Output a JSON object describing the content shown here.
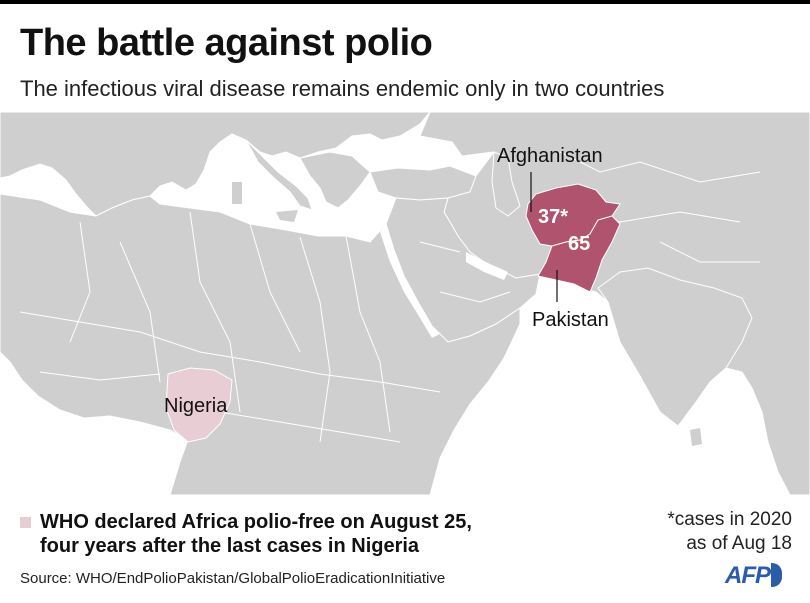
{
  "title": "The battle against polio",
  "subtitle": "The infectious viral disease remains endemic only in two countries",
  "colors": {
    "sea": "#ffffff",
    "land": "#cfcfcf",
    "border": "#ffffff",
    "endemic": "#b0536e",
    "polio_free_africa": "#e8cdd4"
  },
  "countries": {
    "afghanistan": {
      "label": "Afghanistan",
      "cases": "37*"
    },
    "pakistan": {
      "label": "Pakistan",
      "cases": "65"
    },
    "nigeria": {
      "label": "Nigeria"
    }
  },
  "legend": {
    "text": "WHO declared Africa polio-free on August 25,\nfour years after the last cases in Nigeria"
  },
  "note": "*cases in 2020\nas of Aug 18",
  "source": "Source: WHO/EndPolioPakistan/GlobalPolioEradicationInitiative",
  "logo": "AFP"
}
